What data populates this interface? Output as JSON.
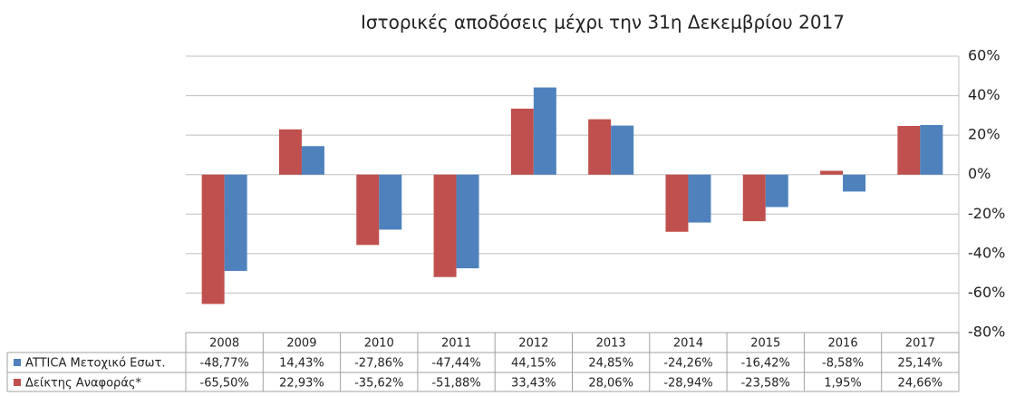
{
  "chart_data": {
    "type": "bar",
    "title": "Ιστορικές αποδόσεις μέχρι την 31η Δεκεμβρίου 2017",
    "categories": [
      "2008",
      "2009",
      "2010",
      "2011",
      "2012",
      "2013",
      "2014",
      "2015",
      "2016",
      "2017"
    ],
    "series": [
      {
        "name": "ATTICA Μετοχικό Εσωτ.",
        "color": "#4f81bd",
        "values": [
          -48.77,
          14.43,
          -27.86,
          -47.44,
          44.15,
          24.85,
          -24.26,
          -16.42,
          -8.58,
          25.14
        ],
        "value_labels": [
          "-48,77%",
          "14,43%",
          "-27,86%",
          "-47,44%",
          "44,15%",
          "24,85%",
          "-24,26%",
          "-16,42%",
          "-8,58%",
          "25,14%"
        ]
      },
      {
        "name": "Δείκτης Αναφοράς*",
        "color": "#c0504d",
        "values": [
          -65.5,
          22.93,
          -35.62,
          -51.88,
          33.43,
          28.06,
          -28.94,
          -23.58,
          1.95,
          24.66
        ],
        "value_labels": [
          "-65,50%",
          "22,93%",
          "-35,62%",
          "-51,88%",
          "33,43%",
          "28,06%",
          "-28,94%",
          "-23,58%",
          "1,95%",
          "24,66%"
        ]
      }
    ],
    "ylim": [
      -80,
      60
    ],
    "yticks": [
      {
        "value": -80,
        "label": "-80%"
      },
      {
        "value": -60,
        "label": "-60%"
      },
      {
        "value": -40,
        "label": "-40%"
      },
      {
        "value": -20,
        "label": "-20%"
      },
      {
        "value": 0,
        "label": "0%"
      },
      {
        "value": 20,
        "label": "20%"
      },
      {
        "value": 40,
        "label": "40%"
      },
      {
        "value": 60,
        "label": "60%"
      }
    ],
    "grid": true
  }
}
